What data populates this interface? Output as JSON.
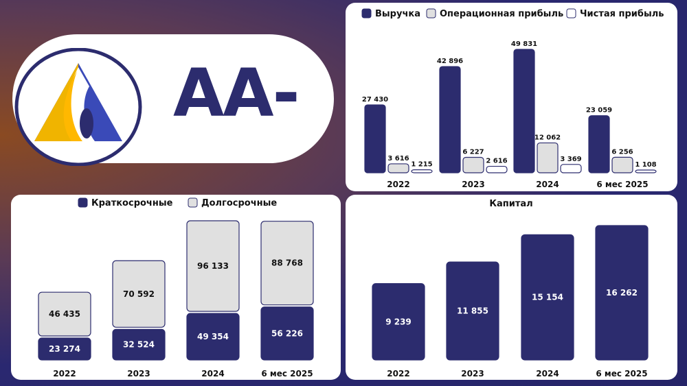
{
  "rating": {
    "label": "AA-"
  },
  "colors": {
    "navy": "#2c2c6e",
    "gray_fill": "#e0e0e0",
    "white_fill": "#ffffff",
    "gold": "#f0b400",
    "blue": "#3a4ab8"
  },
  "chart_data": [
    {
      "type": "bar",
      "title": "",
      "categories": [
        "2022",
        "2023",
        "2024",
        "6 мес 2025"
      ],
      "legend": [
        "Выручка",
        "Операционная прибыль",
        "Чистая прибыль"
      ],
      "legend_position": "top",
      "series": [
        {
          "name": "Выручка",
          "values": [
            27430,
            42896,
            49831,
            23059
          ],
          "labels": [
            "27 430",
            "42 896",
            "49 831",
            "23 059"
          ],
          "color": "#2c2c6e"
        },
        {
          "name": "Операционная прибыль",
          "values": [
            3616,
            6227,
            12062,
            6256
          ],
          "labels": [
            "3 616",
            "6 227",
            "12 062",
            "6 256"
          ],
          "color": "#e0e0e0"
        },
        {
          "name": "Чистая прибыль",
          "values": [
            1215,
            2616,
            3369,
            1108
          ],
          "labels": [
            "1 215",
            "2 616",
            "3 369",
            "1 108"
          ],
          "color": "#ffffff"
        }
      ]
    },
    {
      "type": "bar",
      "stacked": true,
      "title": "",
      "categories": [
        "2022",
        "2023",
        "2024",
        "6 мес 2025"
      ],
      "legend": [
        "Краткосрочные",
        "Долгосрочные"
      ],
      "legend_position": "top",
      "series": [
        {
          "name": "Краткосрочные",
          "values": [
            23274,
            32524,
            49354,
            56226
          ],
          "labels": [
            "23 274",
            "32 524",
            "49 354",
            "56 226"
          ],
          "color": "#2c2c6e"
        },
        {
          "name": "Долгосрочные",
          "values": [
            46435,
            70592,
            96133,
            88768
          ],
          "labels": [
            "46 435",
            "70 592",
            "96 133",
            "88 768"
          ],
          "color": "#e0e0e0"
        }
      ]
    },
    {
      "type": "bar",
      "title": "Капитал",
      "categories": [
        "2022",
        "2023",
        "2024",
        "6 мес 2025"
      ],
      "series": [
        {
          "name": "",
          "values": [
            9239,
            11855,
            15154,
            16262
          ],
          "labels": [
            "9 239",
            "11 855",
            "15 154",
            "16 262"
          ],
          "color": "#2c2c6e"
        }
      ]
    }
  ]
}
